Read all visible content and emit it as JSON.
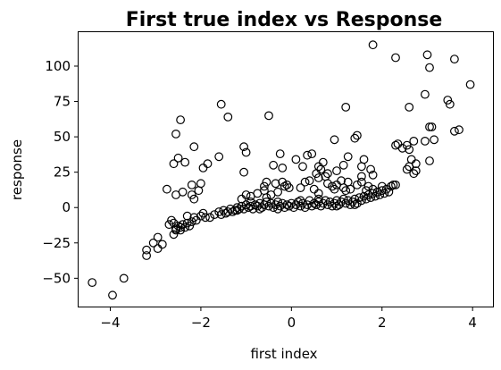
{
  "chart_data": {
    "type": "scatter",
    "title": "First true index vs Response",
    "xlabel": "first index",
    "ylabel": "response",
    "xlim": [
      -4.7,
      4.45
    ],
    "ylim": [
      -70,
      124
    ],
    "xticks": [
      -4,
      -2,
      0,
      2,
      4
    ],
    "yticks": [
      -50,
      -25,
      0,
      25,
      50,
      75,
      100
    ],
    "grid": false,
    "marker": "open-circle",
    "marker_color": "#000000",
    "points": [
      [
        -4.4,
        -53
      ],
      [
        -3.95,
        -62
      ],
      [
        -3.7,
        -50
      ],
      [
        -3.2,
        -30
      ],
      [
        -3.2,
        -34
      ],
      [
        -3.05,
        -25
      ],
      [
        -2.95,
        -21
      ],
      [
        -2.85,
        -26
      ],
      [
        -2.95,
        -29
      ],
      [
        -2.7,
        -12
      ],
      [
        -2.65,
        -9
      ],
      [
        -2.6,
        -11
      ],
      [
        -2.55,
        -16
      ],
      [
        -2.5,
        -13
      ],
      [
        -2.45,
        -14
      ],
      [
        -2.4,
        -12
      ],
      [
        -2.35,
        -14
      ],
      [
        -2.3,
        -11
      ],
      [
        -2.25,
        -13
      ],
      [
        -2.6,
        -19
      ],
      [
        -2.55,
        -15
      ],
      [
        -2.45,
        -16
      ],
      [
        -2.2,
        -10
      ],
      [
        -2.15,
        -7
      ],
      [
        -2.1,
        -9
      ],
      [
        -2.0,
        -6
      ],
      [
        -1.95,
        -4
      ],
      [
        -1.9,
        -7
      ],
      [
        -2.3,
        -6
      ],
      [
        -2.75,
        13
      ],
      [
        -2.55,
        9
      ],
      [
        -2.4,
        11
      ],
      [
        -2.2,
        9
      ],
      [
        -2.15,
        6
      ],
      [
        -2.05,
        12
      ],
      [
        -2.0,
        17
      ],
      [
        -2.2,
        16
      ],
      [
        -2.6,
        31
      ],
      [
        -2.5,
        35
      ],
      [
        -2.35,
        32
      ],
      [
        -1.95,
        28
      ],
      [
        -1.85,
        31
      ],
      [
        -1.6,
        36
      ],
      [
        -2.15,
        43
      ],
      [
        -2.55,
        52
      ],
      [
        -2.45,
        62
      ],
      [
        -1.55,
        73
      ],
      [
        -1.4,
        64
      ],
      [
        -1.05,
        43
      ],
      [
        -1.0,
        39
      ],
      [
        -1.05,
        25
      ],
      [
        -0.5,
        65
      ],
      [
        -1.8,
        -7
      ],
      [
        -1.7,
        -5
      ],
      [
        -1.6,
        -3
      ],
      [
        -1.55,
        -5
      ],
      [
        -1.5,
        -2
      ],
      [
        -1.45,
        -4
      ],
      [
        -1.4,
        -3
      ],
      [
        -1.35,
        -1
      ],
      [
        -1.3,
        -3
      ],
      [
        -1.25,
        -2
      ],
      [
        -1.2,
        0
      ],
      [
        -1.15,
        -1
      ],
      [
        -1.1,
        1
      ],
      [
        -1.05,
        -1
      ],
      [
        -1.0,
        2
      ],
      [
        -0.95,
        0
      ],
      [
        -0.9,
        1
      ],
      [
        -0.85,
        -1
      ],
      [
        -0.8,
        2
      ],
      [
        -0.75,
        1
      ],
      [
        -0.7,
        3
      ],
      [
        -0.65,
        0
      ],
      [
        -0.6,
        2
      ],
      [
        -0.55,
        4
      ],
      [
        -0.5,
        1
      ],
      [
        -0.45,
        3
      ],
      [
        -0.4,
        0
      ],
      [
        -0.35,
        2
      ],
      [
        -0.3,
        4
      ],
      [
        -0.25,
        1
      ],
      [
        -0.2,
        3
      ],
      [
        -0.15,
        0
      ],
      [
        -0.1,
        2
      ],
      [
        -0.05,
        1
      ],
      [
        0.0,
        3
      ],
      [
        0.05,
        0
      ],
      [
        0.1,
        2
      ],
      [
        0.15,
        4
      ],
      [
        0.2,
        1
      ],
      [
        0.25,
        3
      ],
      [
        0.3,
        0
      ],
      [
        0.35,
        2
      ],
      [
        0.4,
        5
      ],
      [
        0.45,
        1
      ],
      [
        0.5,
        3
      ],
      [
        0.55,
        2
      ],
      [
        0.6,
        4
      ],
      [
        0.65,
        1
      ],
      [
        0.7,
        3
      ],
      [
        0.75,
        5
      ],
      [
        0.8,
        2
      ],
      [
        0.85,
        4
      ],
      [
        0.9,
        1
      ],
      [
        0.95,
        3
      ],
      [
        1.0,
        5
      ],
      [
        1.05,
        2
      ],
      [
        1.1,
        4
      ],
      [
        1.15,
        6
      ],
      [
        1.2,
        3
      ],
      [
        1.25,
        5
      ],
      [
        1.3,
        2
      ],
      [
        1.35,
        4
      ],
      [
        1.4,
        6
      ],
      [
        1.45,
        3
      ],
      [
        1.5,
        7
      ],
      [
        1.55,
        5
      ],
      [
        1.6,
        8
      ],
      [
        1.65,
        6
      ],
      [
        1.7,
        9
      ],
      [
        1.75,
        7
      ],
      [
        1.8,
        10
      ],
      [
        1.85,
        8
      ],
      [
        1.9,
        11
      ],
      [
        1.95,
        9
      ],
      [
        2.0,
        12
      ],
      [
        2.05,
        10
      ],
      [
        2.1,
        13
      ],
      [
        2.15,
        11
      ],
      [
        2.2,
        15
      ],
      [
        2.25,
        16
      ],
      [
        2.3,
        16
      ],
      [
        -1.2,
        -2
      ],
      [
        -0.9,
        4
      ],
      [
        -0.7,
        -1
      ],
      [
        -0.3,
        -1
      ],
      [
        0.2,
        5
      ],
      [
        0.6,
        6
      ],
      [
        1.0,
        1
      ],
      [
        1.4,
        2
      ],
      [
        -1.1,
        6
      ],
      [
        -1.0,
        9
      ],
      [
        -0.9,
        8
      ],
      [
        -0.75,
        10
      ],
      [
        -0.6,
        12
      ],
      [
        -0.55,
        7
      ],
      [
        -0.45,
        9
      ],
      [
        -0.3,
        11
      ],
      [
        -0.15,
        15
      ],
      [
        -0.05,
        14
      ],
      [
        -0.6,
        15
      ],
      [
        -0.55,
        18
      ],
      [
        -0.35,
        17
      ],
      [
        -0.2,
        18
      ],
      [
        -0.1,
        16
      ],
      [
        0.2,
        14
      ],
      [
        0.3,
        18
      ],
      [
        0.4,
        19
      ],
      [
        0.5,
        13
      ],
      [
        0.6,
        10
      ],
      [
        0.55,
        24
      ],
      [
        0.6,
        21
      ],
      [
        0.65,
        27
      ],
      [
        0.75,
        22
      ],
      [
        0.8,
        17
      ],
      [
        0.9,
        15
      ],
      [
        0.95,
        13
      ],
      [
        1.0,
        16
      ],
      [
        1.1,
        19
      ],
      [
        1.15,
        14
      ],
      [
        1.2,
        12
      ],
      [
        1.25,
        18
      ],
      [
        1.3,
        13
      ],
      [
        1.45,
        16
      ],
      [
        1.55,
        18
      ],
      [
        1.65,
        12
      ],
      [
        1.7,
        15
      ],
      [
        1.8,
        13
      ],
      [
        1.9,
        11
      ],
      [
        2.0,
        15
      ],
      [
        -0.4,
        30
      ],
      [
        -0.25,
        38
      ],
      [
        -0.2,
        28
      ],
      [
        0.1,
        34
      ],
      [
        0.25,
        29
      ],
      [
        0.35,
        37
      ],
      [
        0.45,
        38
      ],
      [
        0.6,
        29
      ],
      [
        0.7,
        32
      ],
      [
        0.8,
        24
      ],
      [
        1.0,
        26
      ],
      [
        1.15,
        30
      ],
      [
        1.25,
        36
      ],
      [
        1.4,
        49
      ],
      [
        1.45,
        51
      ],
      [
        1.55,
        29
      ],
      [
        1.6,
        34
      ],
      [
        1.75,
        27
      ],
      [
        1.8,
        23
      ],
      [
        1.55,
        22
      ],
      [
        0.95,
        48
      ],
      [
        1.2,
        71
      ],
      [
        1.8,
        115
      ],
      [
        2.3,
        44
      ],
      [
        2.35,
        45
      ],
      [
        2.45,
        42
      ],
      [
        2.55,
        44
      ],
      [
        2.6,
        41
      ],
      [
        2.55,
        27
      ],
      [
        2.6,
        29
      ],
      [
        2.65,
        34
      ],
      [
        2.7,
        24
      ],
      [
        2.75,
        26
      ],
      [
        2.7,
        47
      ],
      [
        2.75,
        31
      ],
      [
        2.95,
        47
      ],
      [
        3.05,
        57
      ],
      [
        3.1,
        57
      ],
      [
        3.15,
        48
      ],
      [
        3.05,
        33
      ],
      [
        3.45,
        76
      ],
      [
        3.5,
        73
      ],
      [
        3.6,
        54
      ],
      [
        3.7,
        55
      ],
      [
        3.95,
        87
      ],
      [
        3.6,
        105
      ],
      [
        3.0,
        108
      ],
      [
        3.05,
        99
      ],
      [
        2.95,
        80
      ],
      [
        2.6,
        71
      ],
      [
        2.3,
        106
      ]
    ]
  }
}
